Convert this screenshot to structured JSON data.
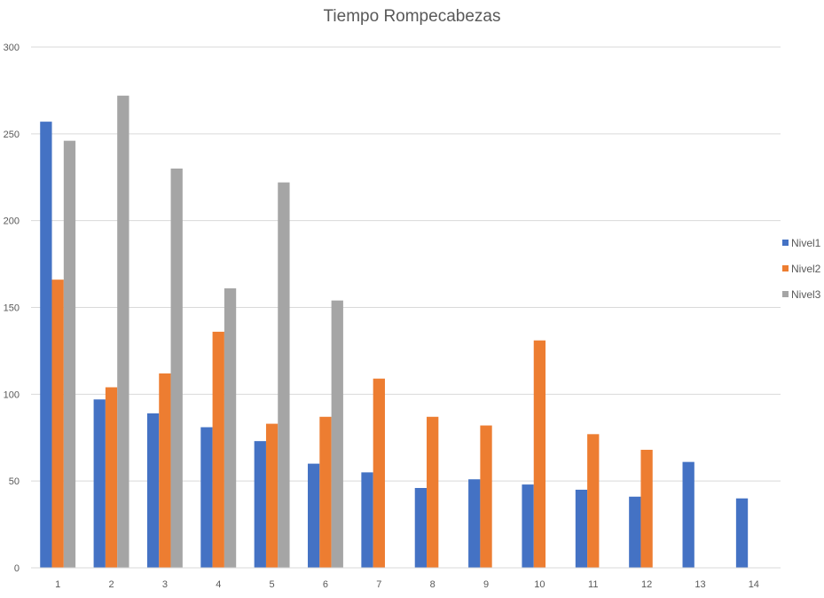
{
  "chart_data": {
    "type": "bar",
    "title": "Tiempo Rompecabezas",
    "categories": [
      "1",
      "2",
      "3",
      "4",
      "5",
      "6",
      "7",
      "8",
      "9",
      "10",
      "11",
      "12",
      "13",
      "14"
    ],
    "series": [
      {
        "name": "Nivel1",
        "color": "#4472C4",
        "values": [
          257,
          97,
          89,
          81,
          73,
          60,
          55,
          46,
          51,
          48,
          45,
          41,
          61,
          40
        ]
      },
      {
        "name": "Nivel2",
        "color": "#ED7D31",
        "values": [
          166,
          104,
          112,
          136,
          83,
          87,
          109,
          87,
          82,
          131,
          77,
          68,
          null,
          null
        ]
      },
      {
        "name": "Nivel3",
        "color": "#A5A5A5",
        "values": [
          246,
          272,
          230,
          161,
          222,
          154,
          null,
          null,
          null,
          null,
          null,
          null,
          null,
          null
        ]
      }
    ],
    "yticks": [
      0,
      50,
      100,
      150,
      200,
      250,
      300
    ],
    "ylim": [
      0,
      300
    ],
    "xlabel": "",
    "ylabel": "",
    "grid": true,
    "legend_position": "right"
  }
}
